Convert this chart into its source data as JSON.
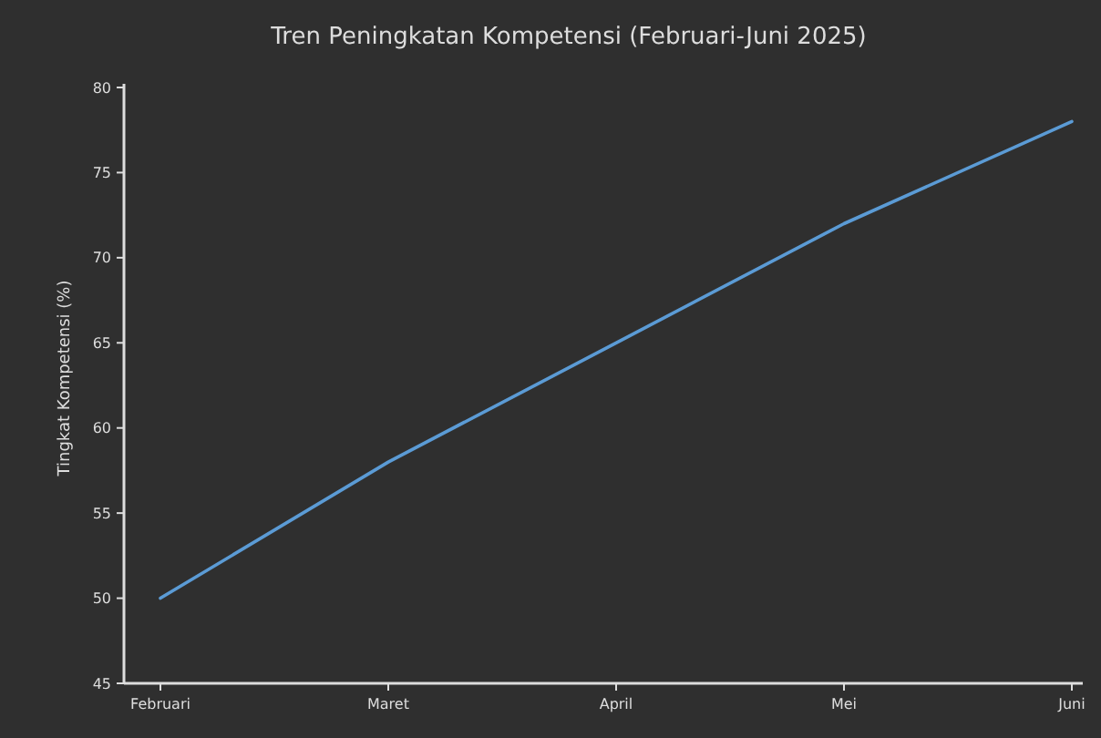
{
  "chart_data": {
    "type": "line",
    "title": "Tren Peningkatan Kompetensi (Februari-Juni 2025)",
    "ylabel": "Tingkat Kompetensi (%)",
    "categories": [
      "Februari",
      "Maret",
      "April",
      "Mei",
      "Juni"
    ],
    "series": [
      {
        "color": "#5b9bd5",
        "values": [
          50,
          58,
          65,
          72,
          78
        ]
      }
    ],
    "ylim": [
      45,
      80
    ],
    "yticks": [
      45,
      50,
      55,
      60,
      65,
      70,
      75,
      80
    ],
    "grid": false,
    "marker": "none",
    "line_style": "solid"
  }
}
